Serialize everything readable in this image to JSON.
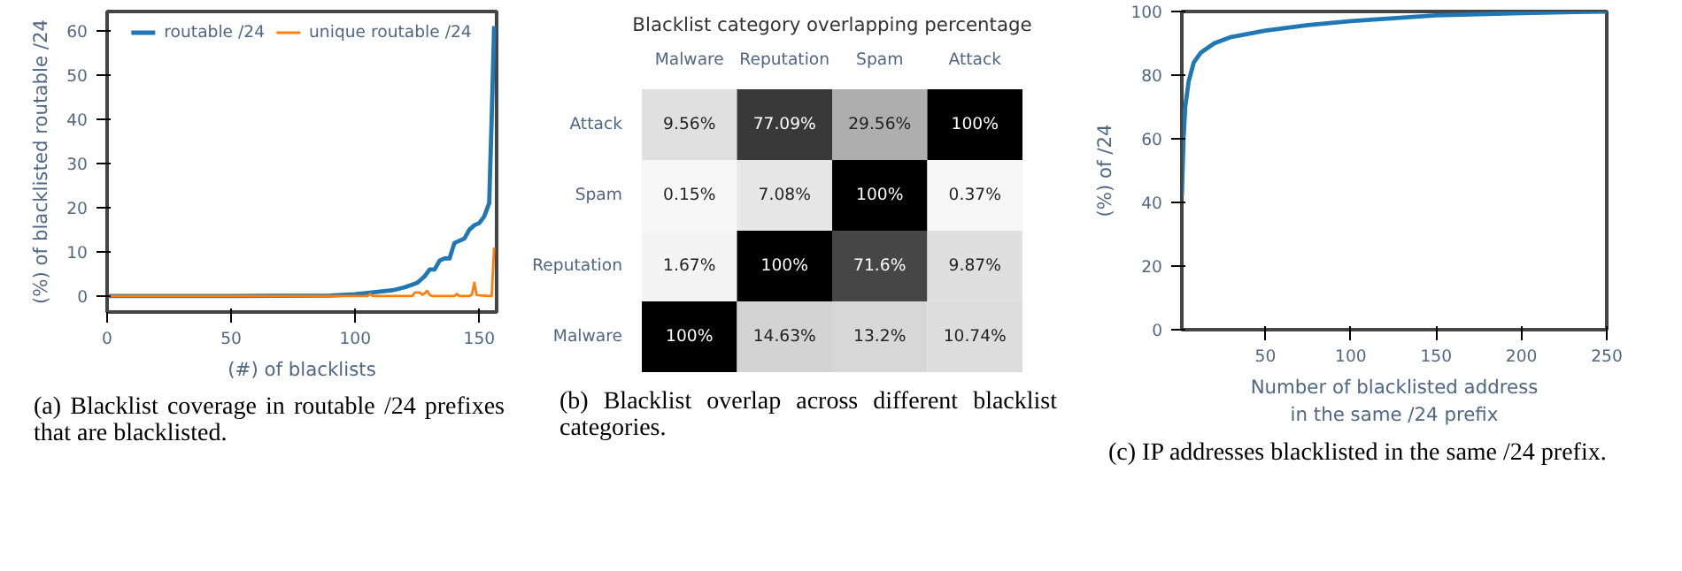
{
  "chart_data": [
    {
      "type": "line",
      "xlabel": "(#) of blacklists",
      "ylabel": "(%) of blacklisted routable /24",
      "xlim": [
        0,
        157
      ],
      "ylim": [
        -3.6,
        64.3
      ],
      "xticks": [
        0,
        50,
        100,
        150
      ],
      "yticks": [
        0,
        10,
        20,
        30,
        40,
        50,
        60
      ],
      "grid": false,
      "legend": "top",
      "series": [
        {
          "name": "routable /24",
          "color": "#1f77b4",
          "x": [
            0,
            50,
            90,
            100,
            110,
            115,
            120,
            125,
            128,
            130,
            132,
            134,
            136,
            138,
            140,
            142,
            144,
            146,
            148,
            150,
            152,
            154,
            155,
            156
          ],
          "values": [
            0,
            0,
            0.1,
            0.4,
            1,
            1.3,
            2,
            3,
            4.5,
            6,
            6,
            8,
            8.5,
            8.5,
            12,
            12.5,
            13,
            15,
            16,
            16.5,
            18,
            21,
            40,
            61
          ]
        },
        {
          "name": "unique routable /24",
          "color": "#ff7f0e",
          "x": [
            0,
            105,
            106,
            107,
            123,
            124,
            126,
            127,
            128,
            129,
            130,
            131,
            140,
            141,
            142,
            146,
            147,
            148,
            149,
            154,
            155,
            156
          ],
          "values": [
            0,
            0,
            0.5,
            0,
            0,
            0.8,
            0.8,
            0.3,
            0.6,
            1.2,
            0.3,
            0,
            0,
            0.5,
            0,
            0,
            0.3,
            3,
            0.2,
            0,
            0,
            11
          ]
        }
      ],
      "annotations": [
        "(a) Blacklist coverage in routable /24 prefixes that are blacklisted."
      ]
    },
    {
      "type": "heatmap",
      "title": "Blacklist category overlapping percentage",
      "categories": [
        "Malware",
        "Reputation",
        "Spam",
        "Attack"
      ],
      "y_categories": [
        "Attack",
        "Spam",
        "Reputation",
        "Malware"
      ],
      "cells": [
        [
          9.56,
          77.09,
          29.56,
          100
        ],
        [
          0.15,
          7.08,
          100,
          0.37
        ],
        [
          1.67,
          100,
          71.6,
          9.87
        ],
        [
          100,
          14.63,
          13.2,
          10.74
        ]
      ],
      "cell_labels": [
        [
          "9.56%",
          "77.09%",
          "29.56%",
          "100%"
        ],
        [
          "0.15%",
          "7.08%",
          "100%",
          "0.37%"
        ],
        [
          "1.67%",
          "100%",
          "71.6%",
          "9.87%"
        ],
        [
          "100%",
          "14.63%",
          "13.2%",
          "10.74%"
        ]
      ],
      "annotations": [
        "(b) Blacklist overlap across different blacklist categories."
      ]
    },
    {
      "type": "line",
      "xlabel": "Number of blacklisted address\nin the same /24 prefix",
      "ylabel": "(%) of /24",
      "xlim": [
        1,
        250
      ],
      "ylim": [
        0,
        100
      ],
      "xticks": [
        50,
        100,
        150,
        200,
        250
      ],
      "yticks": [
        0,
        20,
        40,
        60,
        80,
        100
      ],
      "grid": false,
      "series": [
        {
          "color": "#1f77b4",
          "x": [
            1,
            2,
            3,
            5,
            8,
            12,
            20,
            30,
            50,
            75,
            100,
            150,
            200,
            250
          ],
          "values": [
            42,
            60,
            70,
            78,
            84,
            87,
            90,
            92,
            94,
            95.7,
            97,
            98.8,
            99.5,
            100
          ]
        }
      ],
      "annotations": [
        "(c) IP addresses blacklisted in the same /24 prefix."
      ]
    }
  ]
}
